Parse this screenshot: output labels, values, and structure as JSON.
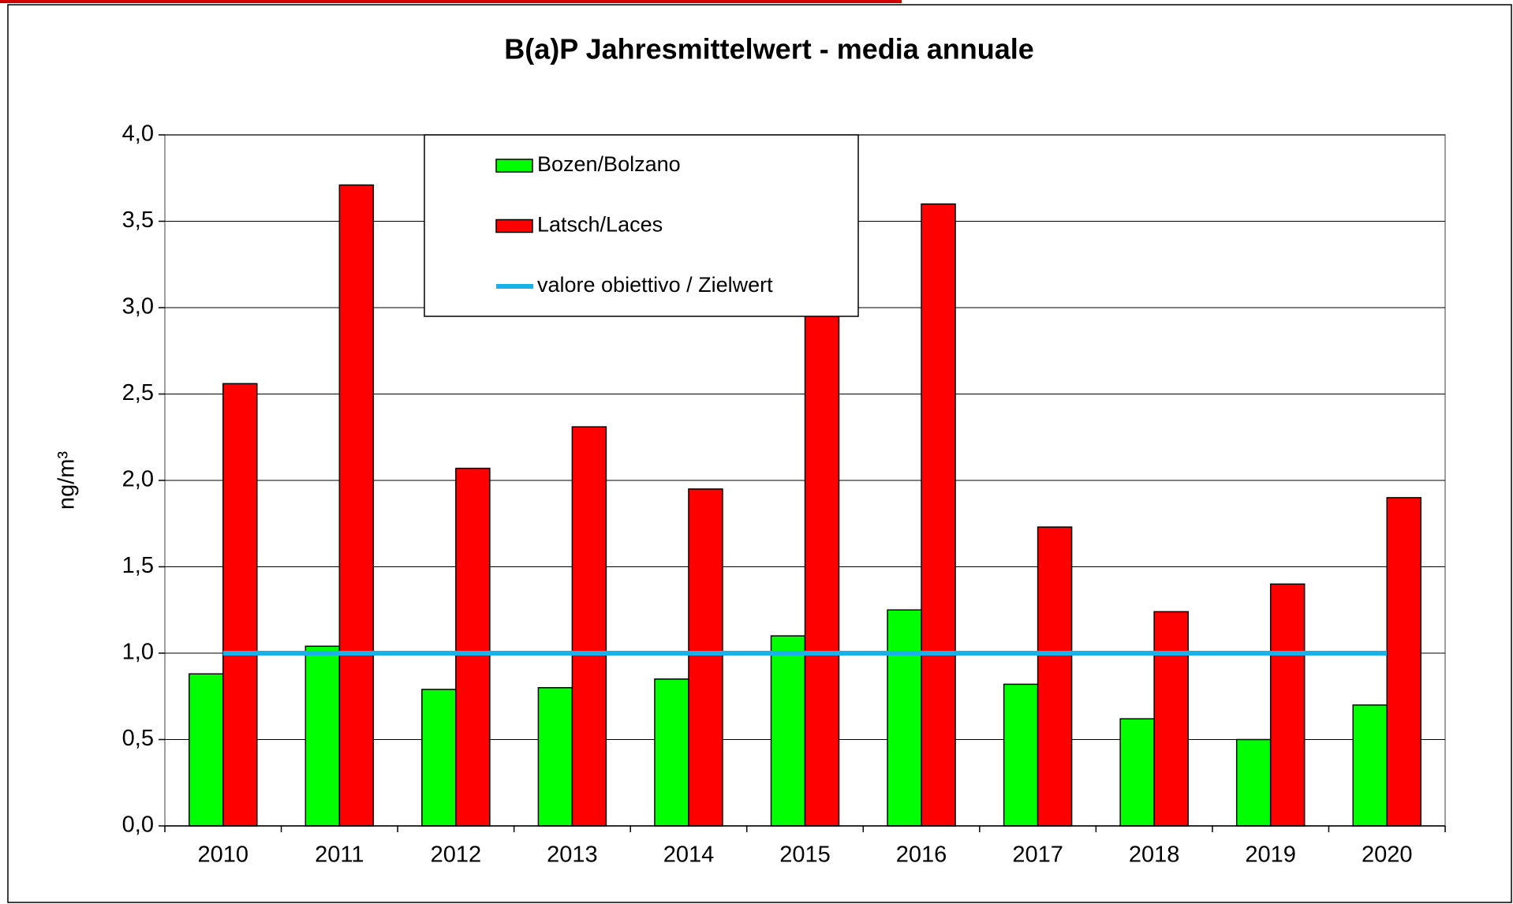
{
  "chart_data": {
    "type": "bar",
    "title": "B(a)P Jahresmittelwert  - media annuale",
    "y_label": "ng/m³",
    "categories": [
      "2010",
      "2011",
      "2012",
      "2013",
      "2014",
      "2015",
      "2016",
      "2017",
      "2018",
      "2019",
      "2020"
    ],
    "series": [
      {
        "name": "Bozen/Bolzano",
        "color": "#00ff00",
        "values": [
          0.88,
          1.04,
          0.79,
          0.8,
          0.85,
          1.1,
          1.25,
          0.82,
          0.62,
          0.5,
          0.7
        ]
      },
      {
        "name": "Latsch/Laces",
        "color": "#ff0000",
        "values": [
          2.56,
          3.71,
          2.07,
          2.31,
          1.95,
          3.0,
          3.6,
          1.73,
          1.24,
          1.4,
          1.9
        ]
      },
      {
        "name": "valore obiettivo / Zielwert",
        "type": "line",
        "color": "#1ab0e8",
        "values": [
          1,
          1,
          1,
          1,
          1,
          1,
          1,
          1,
          1,
          1,
          1
        ]
      }
    ],
    "ylim": [
      0,
      4
    ],
    "yticks": [
      {
        "value": 0,
        "label": "0,0"
      },
      {
        "value": 0.5,
        "label": "0,5"
      },
      {
        "value": 1,
        "label": "1,0"
      },
      {
        "value": 1.5,
        "label": "1,5"
      },
      {
        "value": 2,
        "label": "2,0"
      },
      {
        "value": 2.5,
        "label": "2,5"
      },
      {
        "value": 3,
        "label": "3,0"
      },
      {
        "value": 3.5,
        "label": "3,5"
      },
      {
        "value": 4,
        "label": "4,0"
      }
    ],
    "grid": true
  }
}
